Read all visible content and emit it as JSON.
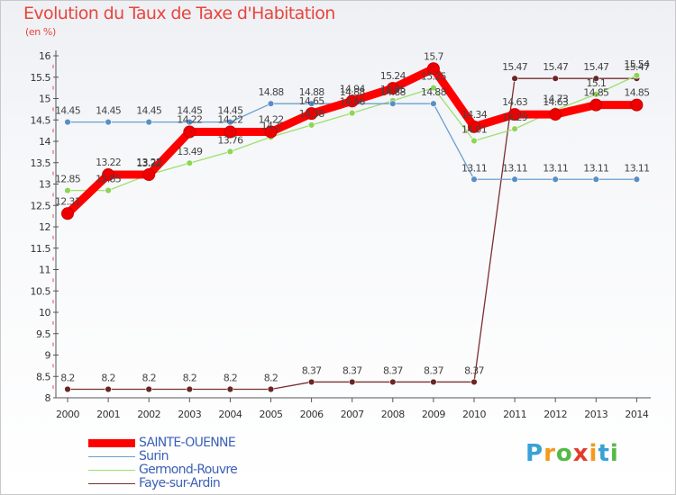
{
  "page": {
    "title": "Evolution du Taux de Taxe d'Habitation",
    "unit_label": "(en %)"
  },
  "chart_data": {
    "type": "line",
    "title": "Evolution du Taux de Taxe d'Habitation",
    "ylabel": "(en %)",
    "xlabel": "",
    "ylim": [
      8,
      16
    ],
    "yticks": [
      "8",
      "8.5",
      "9",
      "9.5",
      "10",
      "10.5",
      "11",
      "11.5",
      "12",
      "12.5",
      "13",
      "13.5",
      "14",
      "14.5",
      "15",
      "15.5",
      "16"
    ],
    "x": [
      "2000",
      "2001",
      "2002",
      "2003",
      "2004",
      "2005",
      "2006",
      "2007",
      "2008",
      "2009",
      "2010",
      "2011",
      "2012",
      "2013",
      "2014"
    ],
    "legend_position": "bottom-left",
    "series": [
      {
        "name": "SAINTE-OUENNE",
        "color": "#ff0000",
        "values": [
          12.31,
          13.22,
          13.22,
          14.22,
          14.22,
          14.22,
          14.65,
          14.94,
          15.24,
          15.7,
          14.34,
          14.63,
          14.63,
          14.85,
          14.85
        ],
        "labels": [
          "12.31",
          "13.22",
          "13.22",
          "14.22",
          "14.22",
          "14.22",
          "14.65",
          "14.94",
          "15.24",
          "15.7",
          "14.34",
          "14.63",
          "14.63",
          "14.85",
          "14.85"
        ]
      },
      {
        "name": "Surin",
        "color": "#6a9fd0",
        "values": [
          14.45,
          14.45,
          14.45,
          14.45,
          14.45,
          14.88,
          14.88,
          14.88,
          14.88,
          14.88,
          13.11,
          13.11,
          13.11,
          13.11,
          13.11
        ],
        "labels": [
          "14.45",
          "14.45",
          "14.45",
          "14.45",
          "14.45",
          "14.88",
          "14.88",
          "14.88",
          "14.88",
          "14.88",
          "13.11",
          "13.11",
          "13.11",
          "13.11",
          "13.11"
        ]
      },
      {
        "name": "Germond-Rouvre",
        "color": "#9ee06c",
        "values": [
          12.85,
          12.85,
          13.22,
          13.49,
          13.76,
          14.1,
          14.38,
          14.66,
          14.95,
          15.25,
          14.01,
          14.29,
          14.73,
          15.1,
          15.54
        ],
        "labels": [
          "12.85",
          "12.85",
          "13.22",
          "13.49",
          "13.76",
          "14.1",
          "14.38",
          "14.66",
          "14.95",
          "15.25",
          "14.01",
          "14.29",
          "14.73",
          "15.1",
          "15.54"
        ]
      },
      {
        "name": "Faye-sur-Ardin",
        "color": "#7a2f2f",
        "values": [
          8.2,
          8.2,
          8.2,
          8.2,
          8.2,
          8.2,
          8.37,
          8.37,
          8.37,
          8.37,
          8.37,
          15.47,
          15.47,
          15.47,
          15.47
        ],
        "labels": [
          "8.2",
          "8.2",
          "8.2",
          "8.2",
          "8.2",
          "8.2",
          "8.37",
          "8.37",
          "8.37",
          "8.37",
          "8.37",
          "15.47",
          "15.47",
          "15.47",
          "15.47"
        ]
      }
    ]
  },
  "logo": {
    "letters": [
      "P",
      "r",
      "o",
      "x",
      "i",
      "t",
      "i"
    ],
    "colors": [
      "#3aa0d8",
      "#f39a1e",
      "#56b947",
      "#e23d2c",
      "#f39a1e",
      "#3aa0d8",
      "#56b947"
    ]
  }
}
